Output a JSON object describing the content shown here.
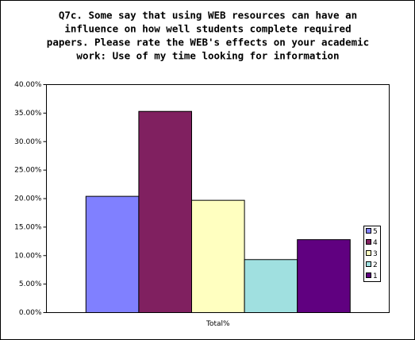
{
  "chart_data": {
    "type": "bar",
    "title": [
      "Q7c.  Some say that using WEB resources can have an",
      "influence on how well students complete required",
      "papers.  Please rate the WEB's effects on your academic",
      "work:  Use of my time looking for information"
    ],
    "categories": [
      "Total%"
    ],
    "series": [
      {
        "name": "5",
        "color": "#8080ff",
        "values": [
          20.4
        ]
      },
      {
        "name": "4",
        "color": "#802060",
        "values": [
          35.3
        ]
      },
      {
        "name": "3",
        "color": "#ffffc0",
        "values": [
          19.7
        ]
      },
      {
        "name": "2",
        "color": "#a0e0e0",
        "values": [
          9.3
        ]
      },
      {
        "name": "1",
        "color": "#600080",
        "values": [
          12.8
        ]
      }
    ],
    "ylim": [
      0,
      40
    ],
    "yticks": [
      {
        "value": 0,
        "label": "0.00%"
      },
      {
        "value": 5,
        "label": "5.00%"
      },
      {
        "value": 10,
        "label": "10.00%"
      },
      {
        "value": 15,
        "label": "15.00%"
      },
      {
        "value": 20,
        "label": "20.00%"
      },
      {
        "value": 25,
        "label": "25.00%"
      },
      {
        "value": 30,
        "label": "30.00%"
      },
      {
        "value": 35,
        "label": "35.00%"
      },
      {
        "value": 40,
        "label": "40.00%"
      }
    ],
    "grid": false,
    "legend": "right"
  }
}
